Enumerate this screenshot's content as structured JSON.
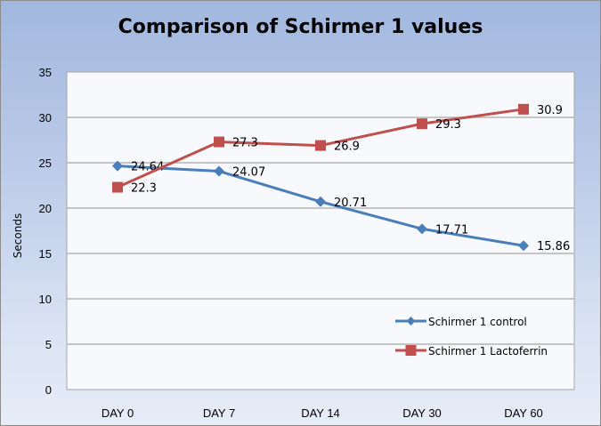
{
  "chart_data": {
    "type": "line",
    "title": "Comparison of Schirmer 1 values",
    "xlabel": "",
    "ylabel": "Seconds",
    "categories": [
      "DAY 0",
      "DAY 7",
      "DAY 14",
      "DAY 30",
      "DAY 60"
    ],
    "ylim": [
      0,
      35
    ],
    "yticks": [
      "0",
      "5",
      "10",
      "15",
      "20",
      "25",
      "30",
      "35"
    ],
    "grid": true,
    "legend_position": "bottom-right",
    "series": [
      {
        "name": "Schirmer 1 control",
        "color": "#4a7ebb",
        "marker": "diamond",
        "values": [
          24.64,
          24.07,
          20.71,
          17.71,
          15.86
        ],
        "labels": [
          "24.64",
          "24.07",
          "20.71",
          "17.71",
          "15.86"
        ]
      },
      {
        "name": "Schirmer 1 Lactoferrin",
        "color": "#c0504d",
        "marker": "square",
        "values": [
          22.3,
          27.3,
          26.9,
          29.3,
          30.9
        ],
        "labels": [
          "22.3",
          "27.3",
          "26.9",
          "29.3",
          "30.9"
        ]
      }
    ]
  }
}
